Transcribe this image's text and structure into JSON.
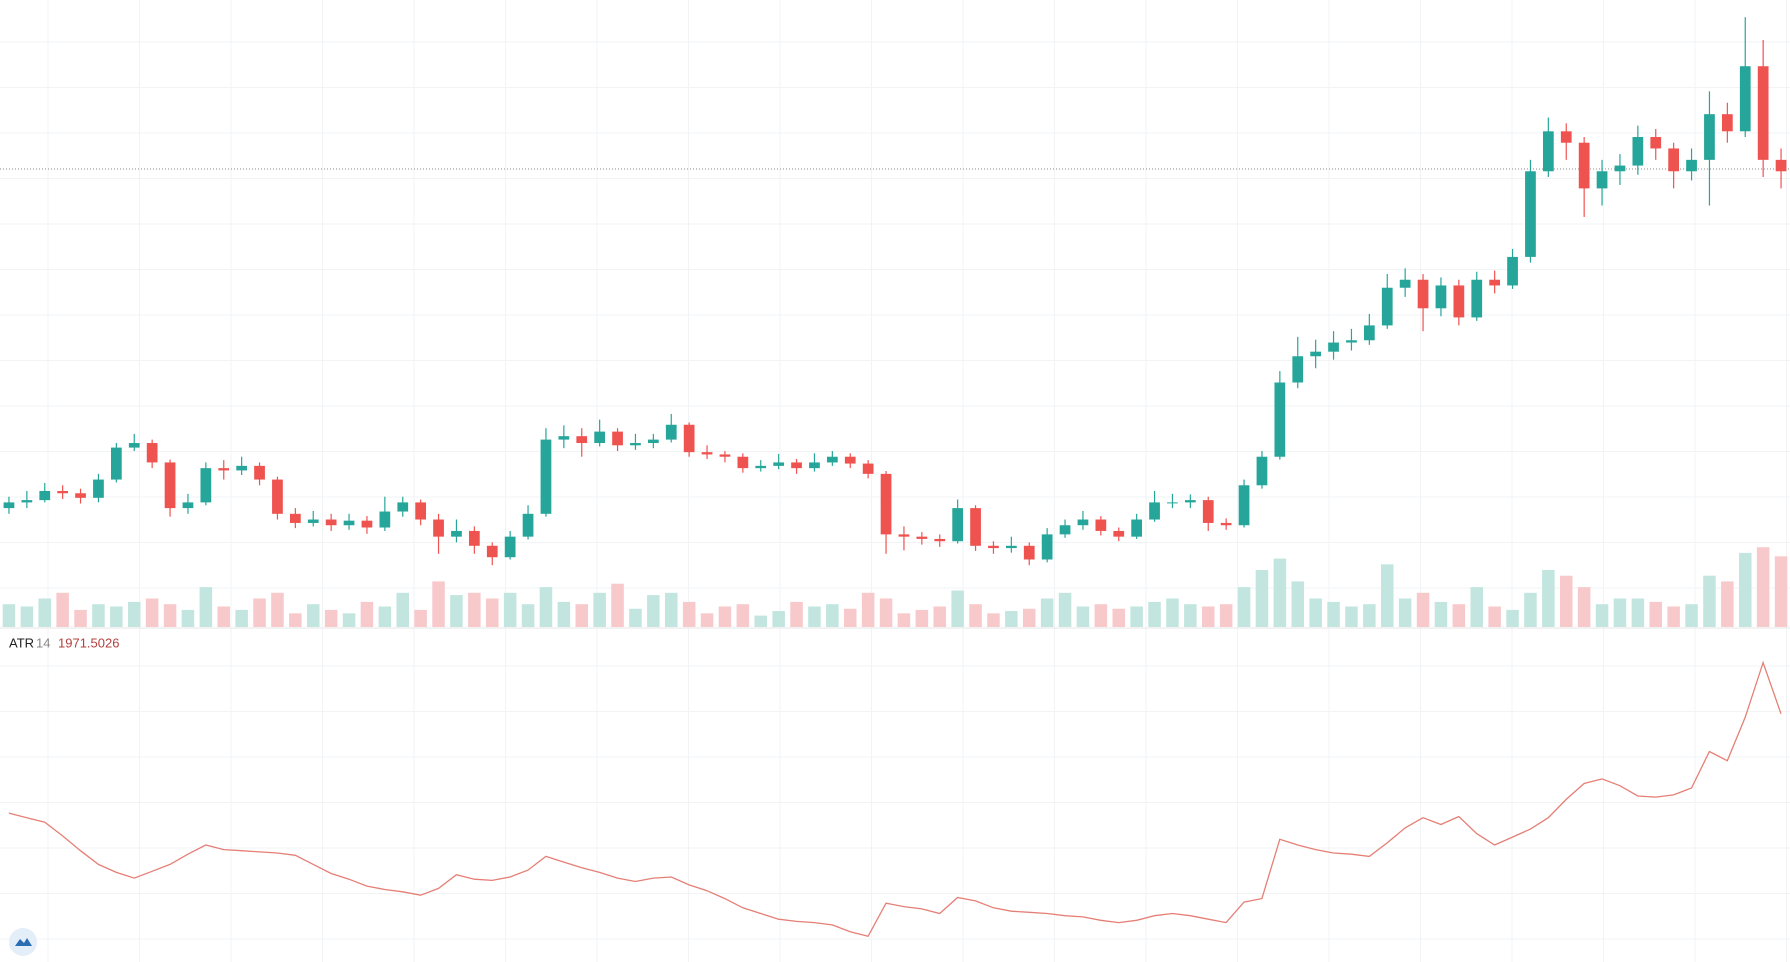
{
  "chart_data": {
    "type": "candlestick",
    "open": [
      21,
      22,
      22.4,
      24,
      23.6,
      22.8,
      26,
      31.6,
      32.4,
      29,
      21,
      22,
      28,
      27.6,
      28.4,
      26,
      20,
      18.4,
      19,
      18,
      18.8,
      17.6,
      20.4,
      22,
      19,
      16,
      17,
      14.4,
      12.4,
      16,
      20,
      33,
      33.6,
      32.4,
      34.4,
      32,
      32.4,
      33,
      35.6,
      30.8,
      30.4,
      30,
      28,
      28.4,
      29,
      28,
      29,
      30,
      28.8,
      27,
      16.4,
      16,
      15.6,
      15.2,
      21,
      14.4,
      14,
      14.4,
      12,
      16.4,
      18,
      19,
      17,
      16,
      19,
      22,
      22,
      22.4,
      18.4,
      18,
      25,
      30,
      43,
      47.6,
      48.4,
      50,
      50.4,
      53,
      59.6,
      61,
      56,
      60,
      54.4,
      61,
      60,
      65,
      80,
      87,
      85,
      77,
      80,
      81,
      86,
      84,
      80,
      82,
      90,
      87,
      98.4,
      82
    ],
    "high": [
      23,
      24,
      25.4,
      25,
      24.4,
      27,
      32.4,
      34,
      33,
      29.5,
      23.5,
      29,
      29.4,
      30,
      29,
      26.5,
      21,
      20.5,
      20,
      20,
      19.6,
      23,
      23,
      22.5,
      20,
      19,
      17.8,
      15,
      17,
      21.5,
      35,
      35.5,
      35,
      36.5,
      35,
      34,
      34,
      37.5,
      36,
      32,
      31,
      30.6,
      29.4,
      30.5,
      29.6,
      30.6,
      31,
      30.6,
      29.4,
      27.5,
      17.8,
      16.8,
      16.4,
      22.5,
      21.5,
      15.2,
      16,
      15,
      17.5,
      19,
      20.5,
      19.6,
      17.6,
      20,
      24,
      23.5,
      23.4,
      23,
      19.2,
      26,
      31,
      45,
      51,
      50.5,
      52,
      52.4,
      55,
      62,
      63,
      62,
      61.4,
      61,
      62.4,
      62.6,
      66.4,
      82,
      89.4,
      88.4,
      86,
      82,
      83,
      88,
      87.4,
      85,
      84,
      94,
      92,
      107,
      103,
      84
    ],
    "low": [
      20,
      21,
      22,
      22.6,
      21.8,
      22,
      25.5,
      31,
      28,
      19.5,
      20,
      21.5,
      26,
      26.8,
      25,
      19,
      17.5,
      17.8,
      17,
      17.2,
      16.5,
      17,
      19.5,
      18,
      13,
      15,
      13,
      11,
      12,
      15.5,
      19.5,
      31.5,
      30,
      31.8,
      31,
      31.2,
      31.5,
      32.5,
      30,
      29.6,
      29,
      27.2,
      27.4,
      27.8,
      27,
      27.4,
      28.4,
      28,
      26.2,
      13,
      13.6,
      14.6,
      14.2,
      14.8,
      13.5,
      13,
      13.2,
      11,
      11.5,
      15.8,
      17.2,
      16.2,
      15.2,
      15.6,
      18.6,
      21,
      21,
      17,
      17.2,
      17.6,
      24.4,
      29.5,
      42,
      45.5,
      47,
      48.6,
      49.6,
      52.4,
      58,
      52,
      54.6,
      53,
      53.8,
      58.6,
      59.4,
      64,
      79,
      82,
      72,
      74,
      77.6,
      79.4,
      82,
      77,
      78.4,
      74,
      85,
      86,
      79,
      77
    ],
    "close": [
      22,
      22.4,
      24,
      23.6,
      22.8,
      26,
      31.6,
      32.4,
      29,
      21,
      22,
      28,
      27.6,
      28.4,
      26,
      20,
      18.4,
      19,
      18,
      18.8,
      17.6,
      20.4,
      22,
      19,
      16,
      17,
      14.4,
      12.4,
      16,
      20,
      33,
      33.6,
      32.4,
      34.4,
      32,
      32.4,
      33,
      35.6,
      30.8,
      30.4,
      30,
      28,
      28.4,
      29,
      28,
      29,
      30,
      28.8,
      27,
      16.4,
      16,
      15.6,
      15.2,
      21,
      14.4,
      14,
      14.4,
      12,
      16.4,
      18,
      19,
      17,
      16,
      19,
      22,
      22,
      22.4,
      18.4,
      18,
      25,
      30,
      43,
      47.6,
      48.4,
      50,
      50.4,
      53,
      59.6,
      61,
      56,
      60,
      54.4,
      61,
      60,
      65,
      80,
      87,
      85,
      77,
      80,
      81,
      86,
      84,
      80,
      82,
      90,
      87,
      98.4,
      82,
      80
    ],
    "volume": [
      20,
      18,
      25,
      30,
      15,
      20,
      18,
      22,
      25,
      20,
      15,
      35,
      18,
      15,
      25,
      30,
      12,
      20,
      15,
      12,
      22,
      18,
      30,
      15,
      40,
      28,
      30,
      25,
      30,
      20,
      35,
      22,
      20,
      30,
      38,
      16,
      28,
      30,
      22,
      12,
      18,
      20,
      10,
      14,
      22,
      18,
      20,
      16,
      30,
      25,
      12,
      15,
      18,
      32,
      20,
      12,
      14,
      16,
      25,
      30,
      18,
      20,
      16,
      18,
      22,
      25,
      20,
      18,
      20,
      35,
      50,
      60,
      40,
      25,
      22,
      18,
      20,
      55,
      25,
      30,
      22,
      20,
      35,
      18,
      15,
      30,
      50,
      45,
      35,
      20,
      25,
      25,
      22,
      18,
      20,
      45,
      40,
      65,
      70,
      62
    ],
    "ylim": [
      0,
      110
    ],
    "volume_ylim": [
      0,
      150
    ],
    "price_line": 80.4,
    "up_color": "#26a69a",
    "down_color": "#ef5350",
    "volume_up_color": "#c2e6df",
    "volume_down_color": "#f8c9cb",
    "atr": {
      "name": "ATR",
      "length": 14,
      "color": "#e57f76",
      "ylim": [
        251.5,
        2531.5
      ],
      "values": [
        1275,
        1243,
        1211,
        1115,
        1011,
        915,
        859,
        819,
        867,
        915,
        987,
        1051,
        1019,
        1011,
        1003,
        995,
        979,
        915,
        851,
        811,
        763,
        739,
        723,
        699,
        747,
        843,
        811,
        803,
        827,
        875,
        971,
        931,
        891,
        859,
        819,
        795,
        819,
        827,
        771,
        731,
        675,
        611,
        571,
        531,
        515,
        507,
        491,
        443,
        411,
        643,
        619,
        603,
        571,
        683,
        659,
        611,
        587,
        579,
        571,
        555,
        547,
        523,
        507,
        523,
        555,
        571,
        555,
        531,
        507,
        651,
        675,
        1091,
        1051,
        1019,
        995,
        987,
        971,
        1067,
        1171,
        1243,
        1195,
        1251,
        1131,
        1051,
        1107,
        1163,
        1243,
        1371,
        1483,
        1515,
        1467,
        1395,
        1387,
        1403,
        1451,
        1707,
        1643,
        1947,
        2331,
        1971.5026
      ]
    }
  }
}
